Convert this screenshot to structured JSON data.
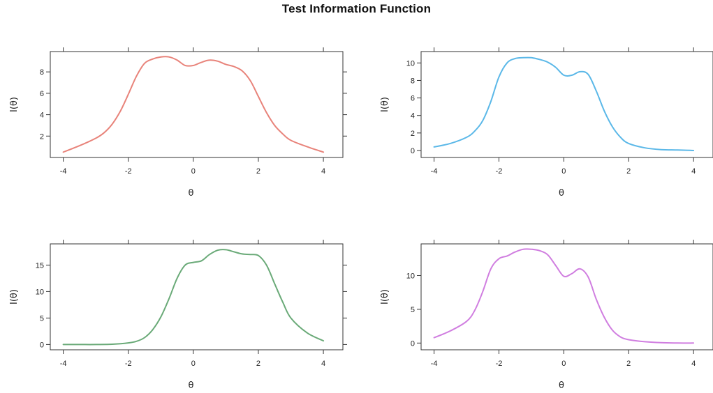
{
  "figure": {
    "title": "Test Information Function"
  },
  "chart_data": [
    {
      "type": "line",
      "xlabel": "θ",
      "ylabel": "I(θ)",
      "xlim": [
        -4.4,
        4.6
      ],
      "ylim": [
        0.0,
        9.9
      ],
      "xticks": [
        -4,
        -2,
        0,
        2,
        4
      ],
      "yticks": [
        2,
        4,
        6,
        8
      ],
      "grid": false,
      "color": "#e8837a",
      "series": [
        {
          "x": [
            -4,
            -3.5,
            -3,
            -2.75,
            -2.5,
            -2.25,
            -2,
            -1.75,
            -1.5,
            -1.25,
            -1,
            -0.75,
            -0.5,
            -0.25,
            0,
            0.25,
            0.5,
            0.75,
            1,
            1.25,
            1.5,
            1.75,
            2,
            2.25,
            2.5,
            2.75,
            3,
            3.5,
            4
          ],
          "y": [
            0.5,
            1.1,
            1.8,
            2.3,
            3.1,
            4.3,
            5.9,
            7.6,
            8.8,
            9.2,
            9.4,
            9.4,
            9.1,
            8.6,
            8.6,
            8.9,
            9.1,
            9.0,
            8.7,
            8.5,
            8.1,
            7.2,
            5.7,
            4.2,
            3.0,
            2.2,
            1.6,
            1.0,
            0.5
          ]
        }
      ]
    },
    {
      "type": "line",
      "xlabel": "θ",
      "ylabel": "I(θ)",
      "xlim": [
        -4.4,
        4.6
      ],
      "ylim": [
        -0.8,
        11.3
      ],
      "xticks": [
        -4,
        -2,
        0,
        2,
        4
      ],
      "yticks": [
        0,
        2,
        4,
        6,
        8,
        10
      ],
      "grid": false,
      "color": "#5bb8e8",
      "series": [
        {
          "x": [
            -4,
            -3.5,
            -3,
            -2.75,
            -2.5,
            -2.25,
            -2,
            -1.75,
            -1.5,
            -1.25,
            -1,
            -0.75,
            -0.5,
            -0.25,
            0,
            0.25,
            0.5,
            0.75,
            1,
            1.25,
            1.5,
            1.75,
            2,
            2.5,
            3,
            3.5,
            4
          ],
          "y": [
            0.4,
            0.8,
            1.5,
            2.2,
            3.4,
            5.6,
            8.4,
            10.0,
            10.5,
            10.6,
            10.6,
            10.4,
            10.1,
            9.5,
            8.6,
            8.6,
            9.0,
            8.7,
            6.8,
            4.5,
            2.7,
            1.5,
            0.8,
            0.3,
            0.1,
            0.05,
            0.0
          ]
        }
      ]
    },
    {
      "type": "line",
      "xlabel": "θ",
      "ylabel": "I(θ)",
      "xlim": [
        -4.4,
        4.6
      ],
      "ylim": [
        -1.0,
        19.0
      ],
      "xticks": [
        -4,
        -2,
        0,
        2,
        4
      ],
      "yticks": [
        0,
        5,
        10,
        15
      ],
      "grid": false,
      "color": "#6aaa78",
      "series": [
        {
          "x": [
            -4,
            -3.5,
            -3,
            -2.5,
            -2,
            -1.75,
            -1.5,
            -1.25,
            -1,
            -0.75,
            -0.5,
            -0.25,
            0,
            0.25,
            0.5,
            0.75,
            1,
            1.25,
            1.5,
            1.75,
            2,
            2.25,
            2.5,
            2.75,
            3,
            3.5,
            4
          ],
          "y": [
            0,
            0,
            0,
            0.05,
            0.3,
            0.6,
            1.3,
            2.8,
            5.2,
            8.6,
            12.5,
            15.0,
            15.5,
            15.8,
            17.0,
            17.8,
            17.9,
            17.5,
            17.1,
            17.0,
            16.8,
            15.0,
            11.5,
            8.0,
            5.0,
            2.2,
            0.7
          ]
        }
      ]
    },
    {
      "type": "line",
      "xlabel": "θ",
      "ylabel": "I(θ)",
      "xlim": [
        -4.4,
        4.6
      ],
      "ylim": [
        -1.0,
        14.7
      ],
      "xticks": [
        -4,
        -2,
        0,
        2,
        4
      ],
      "yticks": [
        0,
        5,
        10
      ],
      "grid": false,
      "color": "#d07ee0",
      "series": [
        {
          "x": [
            -4,
            -3.5,
            -3,
            -2.75,
            -2.5,
            -2.25,
            -2,
            -1.75,
            -1.5,
            -1.25,
            -1,
            -0.75,
            -0.5,
            -0.25,
            0,
            0.25,
            0.5,
            0.75,
            1,
            1.25,
            1.5,
            1.75,
            2,
            2.5,
            3,
            3.5,
            4
          ],
          "y": [
            0.8,
            1.8,
            3.2,
            4.8,
            7.6,
            11.0,
            12.5,
            12.9,
            13.5,
            13.9,
            13.9,
            13.7,
            13.1,
            11.5,
            9.9,
            10.3,
            11.0,
            9.8,
            6.5,
            3.8,
            1.9,
            0.9,
            0.5,
            0.2,
            0.05,
            0.0,
            0.0
          ]
        }
      ]
    }
  ]
}
